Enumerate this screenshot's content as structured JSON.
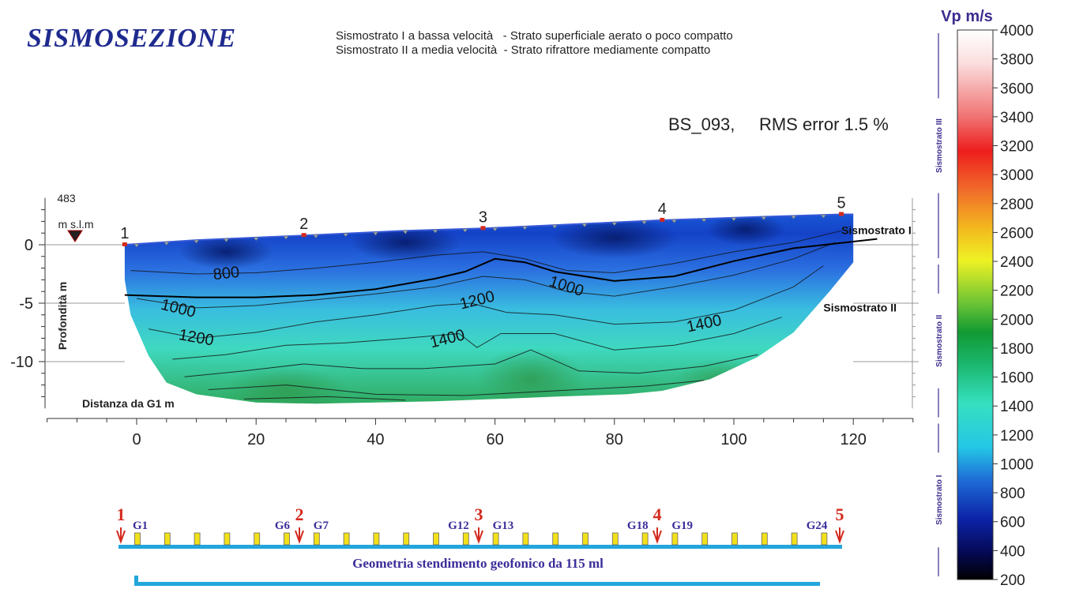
{
  "title": "SISMOSEZIONE",
  "legend_lines": [
    "Sismostrato I a bassa velocità   - Strato superficiale aerato o poco compatto",
    "Sismostrato II a media velocità  - Strato rifrattore mediamente compatto"
  ],
  "profile_id": "BS_093,",
  "rms_label": "RMS error 1.5 %",
  "datum": {
    "elevation": "483",
    "unit": "m s.l.m"
  },
  "chart_data": {
    "type": "heatmap",
    "xlabel": "Distanza da G1   m",
    "ylabel": "Profondità  m",
    "xlim": [
      -15,
      130
    ],
    "ylim": [
      -14,
      4
    ],
    "x_ticks": [
      0,
      20,
      40,
      60,
      80,
      100,
      120
    ],
    "y_ticks": [
      0,
      -5,
      -10
    ],
    "colorbar": {
      "label": "Vp  m/s",
      "min": 200,
      "max": 4000,
      "ticks": [
        4000,
        3800,
        3600,
        3400,
        3200,
        3000,
        2800,
        2600,
        2400,
        2200,
        2000,
        1800,
        1600,
        1400,
        1200,
        1000,
        800,
        600,
        400,
        200
      ],
      "layer_labels": [
        "Sismostrato III",
        "Sismostrato II",
        "Sismostrato I"
      ]
    },
    "contour_labels": [
      {
        "value": "800",
        "x": 15,
        "y": -2.4
      },
      {
        "value": "1000",
        "x": 7,
        "y": -5.4
      },
      {
        "value": "1200",
        "x": 10,
        "y": -7.9
      },
      {
        "value": "1200",
        "x": 57,
        "y": -4.7
      },
      {
        "value": "1000",
        "x": 72,
        "y": -3.5
      },
      {
        "value": "1400",
        "x": 52,
        "y": -8.0
      },
      {
        "value": "1400",
        "x": 95,
        "y": -6.7
      }
    ],
    "shot_points": [
      {
        "label": "1",
        "x": -2,
        "y": 0.0
      },
      {
        "label": "2",
        "x": 28,
        "y": 0.8
      },
      {
        "label": "3",
        "x": 58,
        "y": 1.4
      },
      {
        "label": "4",
        "x": 88,
        "y": 2.1
      },
      {
        "label": "5",
        "x": 118,
        "y": 2.6
      }
    ],
    "layer_labels": [
      {
        "label": "Sismostrato I",
        "x": 118,
        "y": 0.9
      },
      {
        "label": "Sismostrato II",
        "x": 115,
        "y": -5.7
      }
    ],
    "interface": {
      "x": [
        -2,
        10,
        20,
        30,
        40,
        50,
        55,
        60,
        65,
        70,
        80,
        90,
        100,
        110,
        124
      ],
      "y": [
        -4.3,
        -4.5,
        -4.5,
        -4.3,
        -3.8,
        -2.9,
        -2.3,
        -1.2,
        -1.5,
        -2.3,
        -3.1,
        -2.7,
        -1.4,
        -0.3,
        0.5
      ]
    }
  },
  "geometry_label": "Geometria stendimento geofonico da 115 ml",
  "spread_shots": [
    "1",
    "2",
    "3",
    "4",
    "5"
  ],
  "geophone_labels": [
    "G1",
    "G6",
    "G7",
    "G12",
    "G13",
    "G18",
    "G19",
    "G24"
  ],
  "geophone_count": 24,
  "colors": {
    "title": "#1f2a8f",
    "shot_marker": "#d42a1e",
    "geophone_fill": "#f2e11a",
    "spread_line": "#22a6dc",
    "geometry_text": "#3a2e9a",
    "colorbar_labels": "#3c2d8e"
  }
}
